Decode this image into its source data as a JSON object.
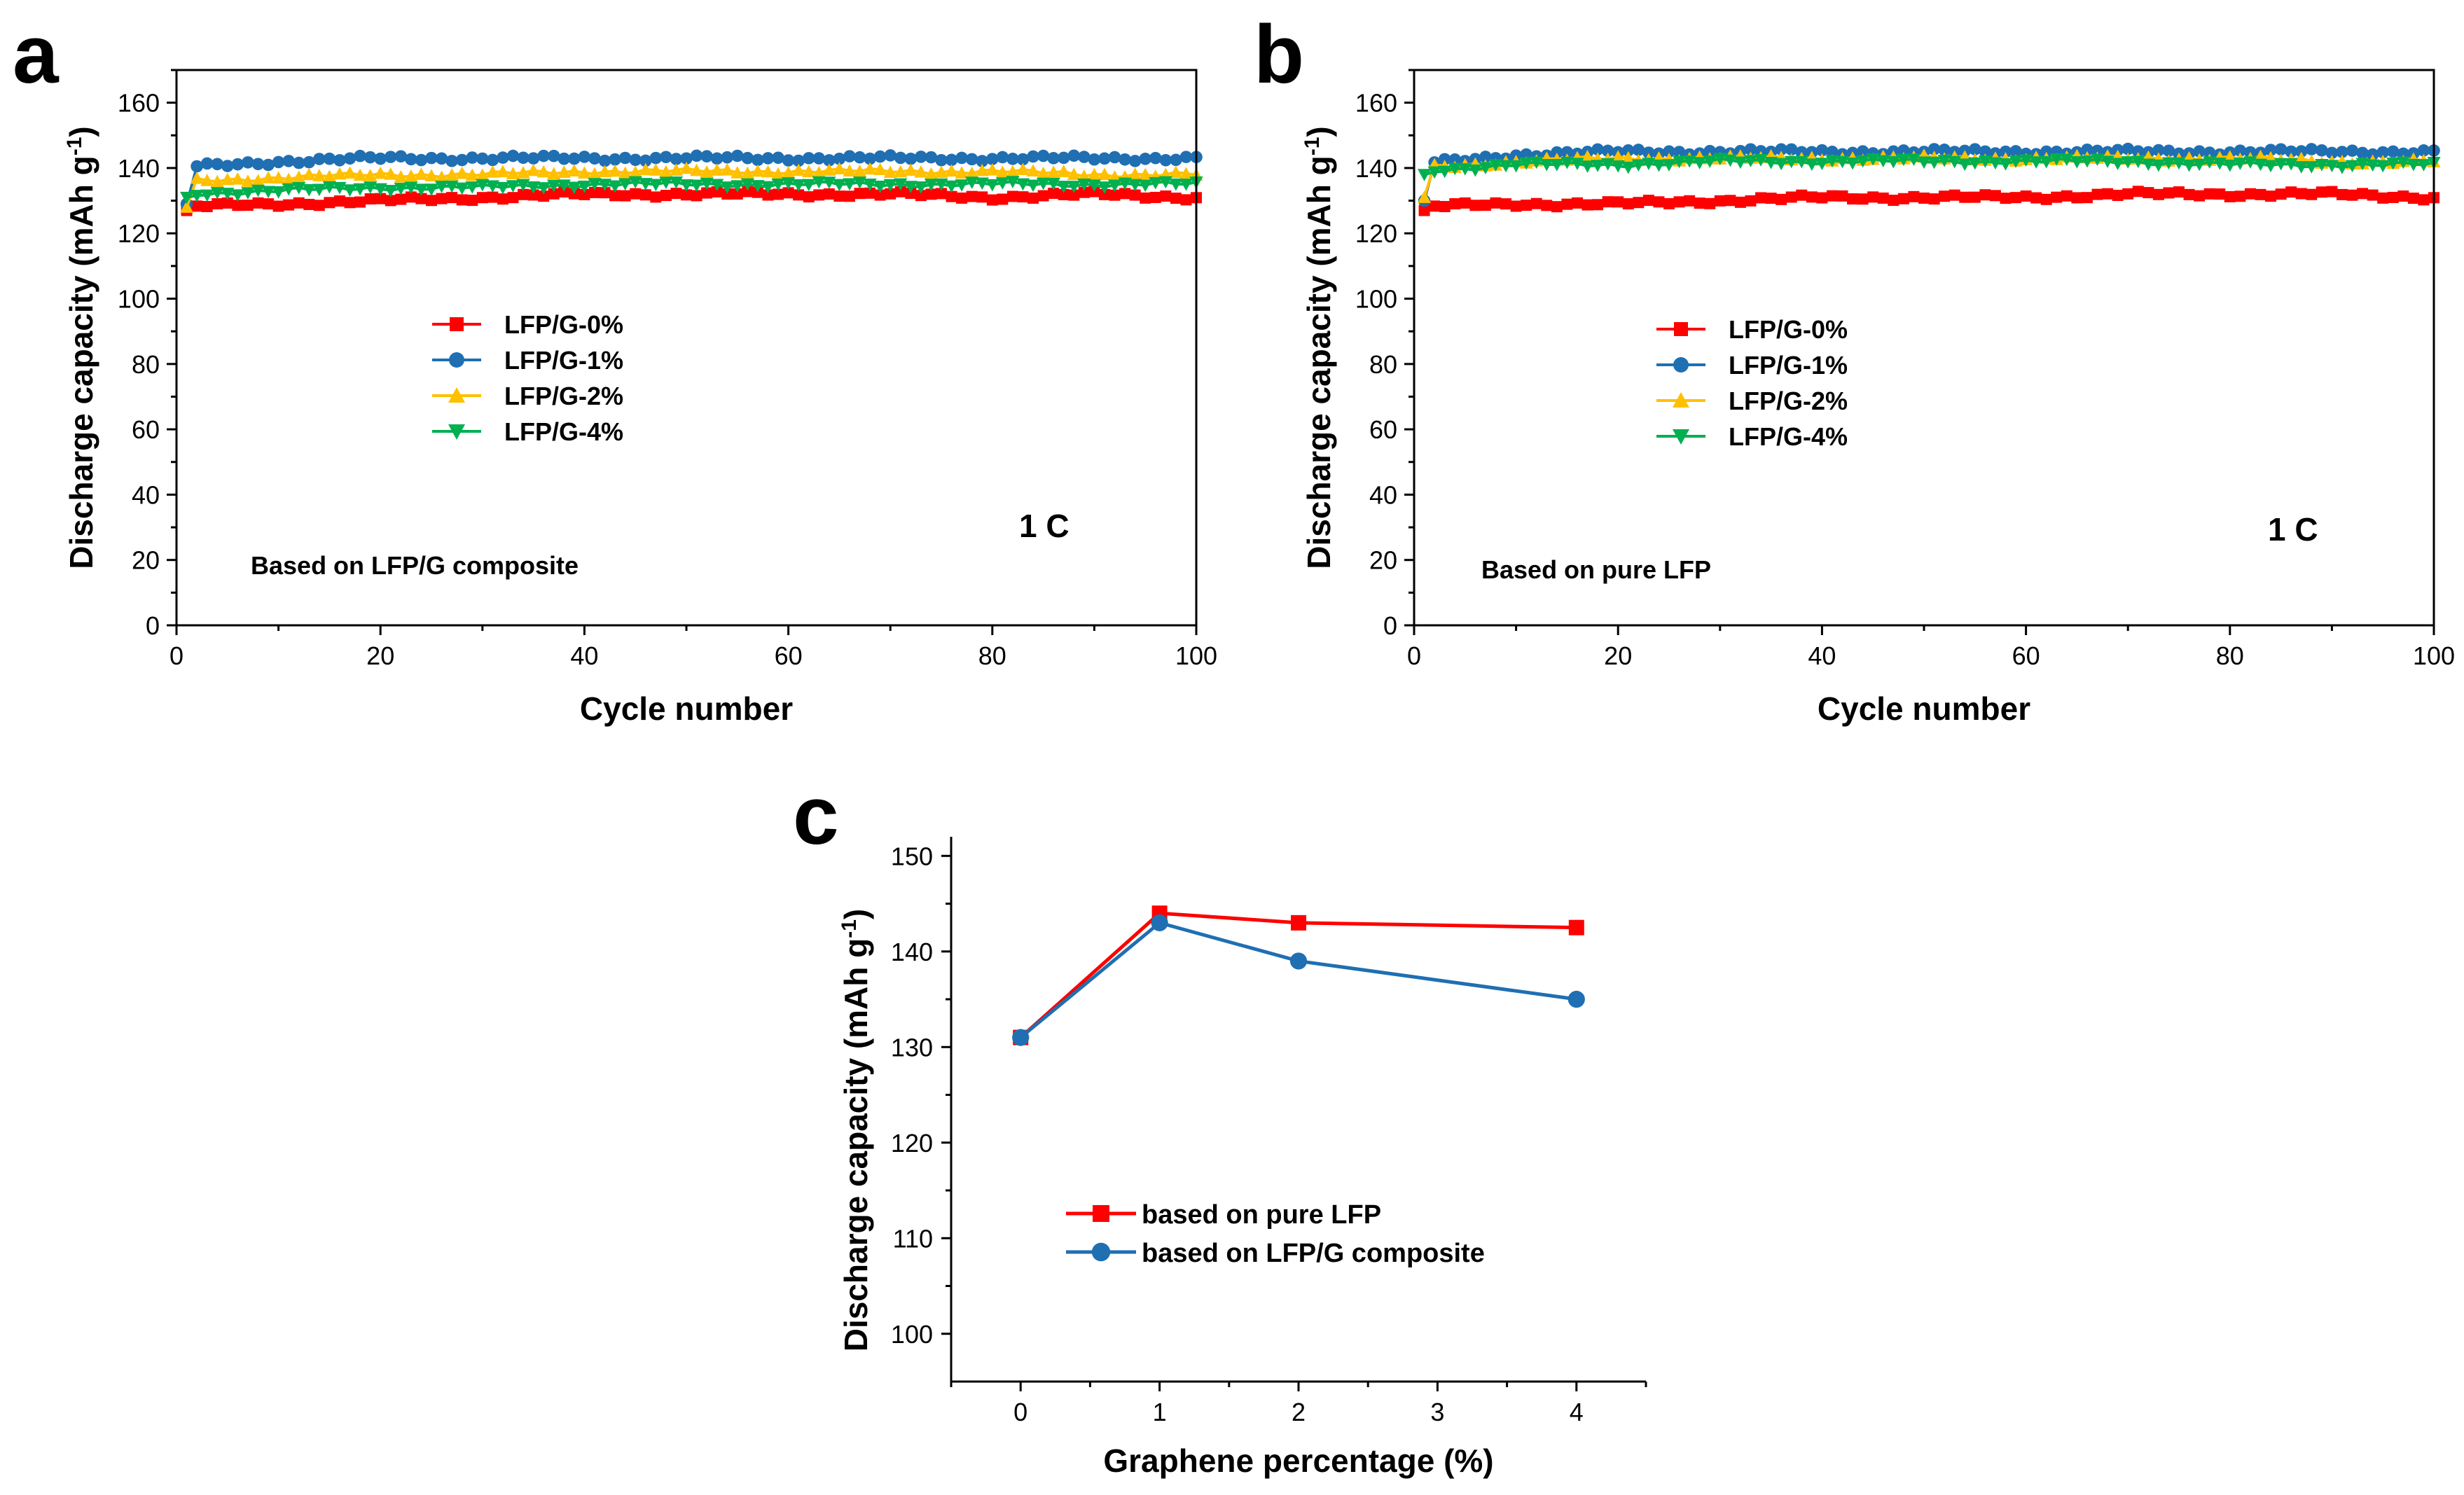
{
  "chart_data": [
    {
      "panel": "a",
      "type": "line",
      "xlabel": "Cycle number",
      "ylabel": "Discharge capacity (mAh g",
      "ylabel_sup": "-1",
      "ylabel_close": ")",
      "xlim": [
        0,
        100
      ],
      "ylim": [
        0,
        170
      ],
      "xticks": [
        "0",
        "20",
        "40",
        "60",
        "80",
        "100"
      ],
      "yticks": [
        "0",
        "20",
        "40",
        "60",
        "80",
        "100",
        "120",
        "140",
        "160"
      ],
      "annotation": "1 C",
      "note": "Based on LFP/G composite",
      "legend_position": "center-left",
      "series": [
        {
          "name": "LFP/G-0%",
          "color": "#ff0000",
          "marker": "square",
          "start": 127,
          "values": [
            128,
            129,
            130,
            131,
            132,
            132,
            132,
            132,
            131,
            132,
            131
          ]
        },
        {
          "name": "LFP/G-1%",
          "color": "#1f6fb2",
          "marker": "circle",
          "start": 129,
          "values": [
            140,
            142,
            143,
            143,
            143,
            143,
            143,
            143,
            143,
            143,
            143
          ]
        },
        {
          "name": "LFP/G-2%",
          "color": "#ffc000",
          "marker": "triangle-up",
          "start": 128,
          "values": [
            136,
            137,
            138,
            138,
            139,
            139,
            139,
            139,
            139,
            138,
            138
          ]
        },
        {
          "name": "LFP/G-4%",
          "color": "#00b050",
          "marker": "triangle-down",
          "start": 131,
          "values": [
            132,
            133,
            134,
            134,
            135,
            135,
            135,
            135,
            135,
            135,
            135
          ]
        }
      ]
    },
    {
      "panel": "b",
      "type": "line",
      "xlabel": "Cycle number",
      "ylabel": "Discharge capacity (mAh g",
      "ylabel_sup": "-1",
      "ylabel_close": ")",
      "xlim": [
        0,
        100
      ],
      "ylim": [
        0,
        170
      ],
      "xticks": [
        "0",
        "20",
        "40",
        "60",
        "80",
        "100"
      ],
      "yticks": [
        "0",
        "20",
        "40",
        "60",
        "80",
        "100",
        "120",
        "140",
        "160"
      ],
      "annotation": "1 C",
      "note": "Based on pure LFP",
      "legend_position": "center-left",
      "series": [
        {
          "name": "LFP/G-0%",
          "color": "#ff0000",
          "marker": "square",
          "start": 127,
          "values": [
            128,
            129,
            129,
            130,
            131,
            131,
            131,
            132,
            132,
            132,
            131
          ]
        },
        {
          "name": "LFP/G-1%",
          "color": "#1f6fb2",
          "marker": "circle",
          "start": 130,
          "values": [
            141,
            144,
            145,
            145,
            145,
            145,
            145,
            145,
            145,
            145,
            145
          ]
        },
        {
          "name": "LFP/G-2%",
          "color": "#ffc000",
          "marker": "triangle-up",
          "start": 131,
          "values": [
            140,
            142,
            143,
            143,
            143,
            143,
            143,
            143,
            143,
            142,
            142
          ]
        },
        {
          "name": "LFP/G-4%",
          "color": "#00b050",
          "marker": "triangle-down",
          "start": 138,
          "values": [
            139,
            141,
            141,
            142,
            142,
            142,
            142,
            142,
            141,
            141,
            141
          ]
        }
      ]
    },
    {
      "panel": "c",
      "type": "line",
      "xlabel": "Graphene percentage (%)",
      "ylabel": "Discharge capacity (mAh g",
      "ylabel_sup": "-1",
      "ylabel_close": ")",
      "xlim": [
        -0.5,
        4.5
      ],
      "ylim": [
        95,
        152
      ],
      "xticks": [
        "0",
        "1",
        "2",
        "3",
        "4"
      ],
      "yticks": [
        "100",
        "110",
        "120",
        "130",
        "140",
        "150"
      ],
      "legend_position": "lower-left",
      "x": [
        0,
        1,
        2,
        4
      ],
      "series": [
        {
          "name": "based on pure LFP",
          "color": "#ff0000",
          "marker": "square",
          "values": [
            131,
            144,
            143,
            142.5
          ]
        },
        {
          "name": "based on LFP/G composite",
          "color": "#1f6fb2",
          "marker": "circle",
          "values": [
            131,
            143,
            139,
            135
          ]
        }
      ]
    }
  ]
}
